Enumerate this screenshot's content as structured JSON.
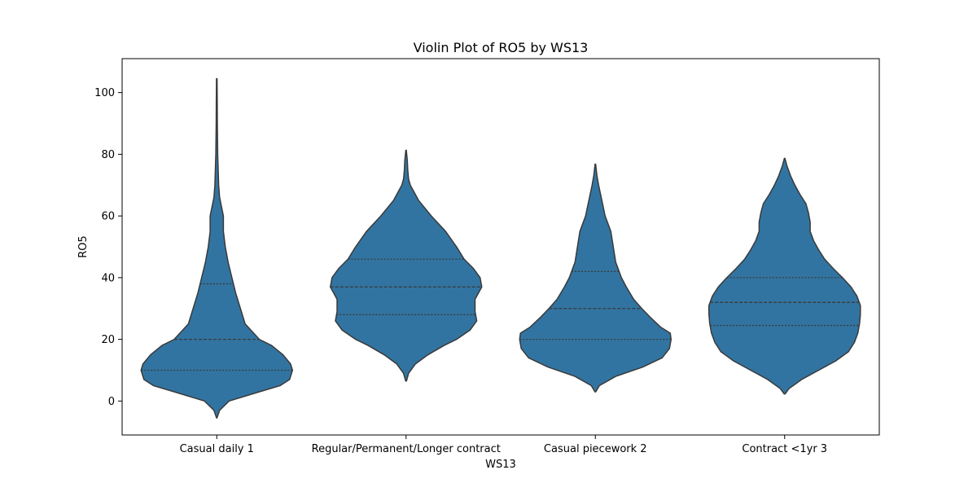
{
  "chart_data": {
    "type": "violin",
    "title": "Violin Plot of RO5 by WS13",
    "xlabel": "WS13",
    "ylabel": "RO5",
    "ylim": [
      -11,
      111
    ],
    "yticks": [
      0,
      20,
      40,
      60,
      80,
      100
    ],
    "grid": false,
    "colors": {
      "violin_fill": "#3274a1",
      "violin_edge": "#3a3a3a",
      "quartile_line": "#3a3a3a"
    },
    "categories": [
      "Casual daily 1",
      "Regular/Permanent/Longer contract",
      "Casual piecework 2",
      "Contract <1yr 3"
    ],
    "violins": [
      {
        "category": "Casual daily 1",
        "min": -5.5,
        "max": 104.5,
        "quartiles": [
          10,
          20,
          38
        ],
        "profile": [
          [
            -5.5,
            0.2
          ],
          [
            -3,
            3
          ],
          [
            0,
            13
          ],
          [
            3,
            45
          ],
          [
            5,
            67
          ],
          [
            7,
            77
          ],
          [
            10,
            80
          ],
          [
            12,
            78
          ],
          [
            15,
            70
          ],
          [
            18,
            58
          ],
          [
            20,
            45
          ],
          [
            25,
            30
          ],
          [
            30,
            25
          ],
          [
            35,
            20
          ],
          [
            40,
            16
          ],
          [
            45,
            12
          ],
          [
            50,
            9
          ],
          [
            55,
            7
          ],
          [
            60,
            7
          ],
          [
            63,
            5
          ],
          [
            66,
            3
          ],
          [
            70,
            2
          ],
          [
            80,
            1
          ],
          [
            90,
            0.6
          ],
          [
            97,
            0.5
          ],
          [
            104.5,
            0.3
          ]
        ]
      },
      {
        "category": "Regular/Permanent/Longer contract",
        "min": 6.5,
        "max": 81.3,
        "quartiles": [
          28,
          37,
          46
        ],
        "profile": [
          [
            6.5,
            0.5
          ],
          [
            9,
            3
          ],
          [
            12,
            11
          ],
          [
            15,
            26
          ],
          [
            18,
            45
          ],
          [
            20,
            60
          ],
          [
            23,
            76
          ],
          [
            26,
            84
          ],
          [
            29,
            82
          ],
          [
            33,
            82
          ],
          [
            37,
            90
          ],
          [
            40,
            88
          ],
          [
            43,
            80
          ],
          [
            46,
            69
          ],
          [
            50,
            60
          ],
          [
            55,
            47
          ],
          [
            60,
            30
          ],
          [
            65,
            15
          ],
          [
            70,
            5
          ],
          [
            72,
            3
          ],
          [
            75,
            2
          ],
          [
            78,
            1.5
          ],
          [
            81.3,
            0.3
          ]
        ]
      },
      {
        "category": "Casual piecework 2",
        "min": 3,
        "max": 76.8,
        "quartiles": [
          20,
          30,
          42
        ],
        "profile": [
          [
            3,
            0.5
          ],
          [
            5,
            5
          ],
          [
            8,
            25
          ],
          [
            11,
            58
          ],
          [
            14,
            82
          ],
          [
            17,
            91
          ],
          [
            20,
            93
          ],
          [
            22,
            92
          ],
          [
            24,
            80
          ],
          [
            27,
            68
          ],
          [
            30,
            57
          ],
          [
            33,
            47
          ],
          [
            37,
            38
          ],
          [
            40,
            32
          ],
          [
            45,
            25
          ],
          [
            50,
            22
          ],
          [
            55,
            19
          ],
          [
            60,
            12
          ],
          [
            65,
            8
          ],
          [
            70,
            4
          ],
          [
            73,
            2
          ],
          [
            76.8,
            0.3
          ]
        ]
      },
      {
        "category": "Contract <1yr 3",
        "min": 2.3,
        "max": 78.7,
        "quartiles": [
          24.5,
          32,
          40
        ],
        "profile": [
          [
            2.3,
            0.5
          ],
          [
            4,
            5
          ],
          [
            7,
            20
          ],
          [
            10,
            40
          ],
          [
            13,
            60
          ],
          [
            16,
            75
          ],
          [
            19,
            82
          ],
          [
            22,
            86
          ],
          [
            25,
            88
          ],
          [
            28,
            89
          ],
          [
            31,
            89
          ],
          [
            34,
            85
          ],
          [
            37,
            78
          ],
          [
            40,
            68
          ],
          [
            43,
            57
          ],
          [
            46,
            47
          ],
          [
            49,
            40
          ],
          [
            52,
            34
          ],
          [
            55,
            30
          ],
          [
            58,
            30
          ],
          [
            61,
            28
          ],
          [
            64,
            25
          ],
          [
            67,
            18
          ],
          [
            70,
            12
          ],
          [
            73,
            7
          ],
          [
            76,
            3
          ],
          [
            78.7,
            0.3
          ]
        ]
      }
    ]
  }
}
